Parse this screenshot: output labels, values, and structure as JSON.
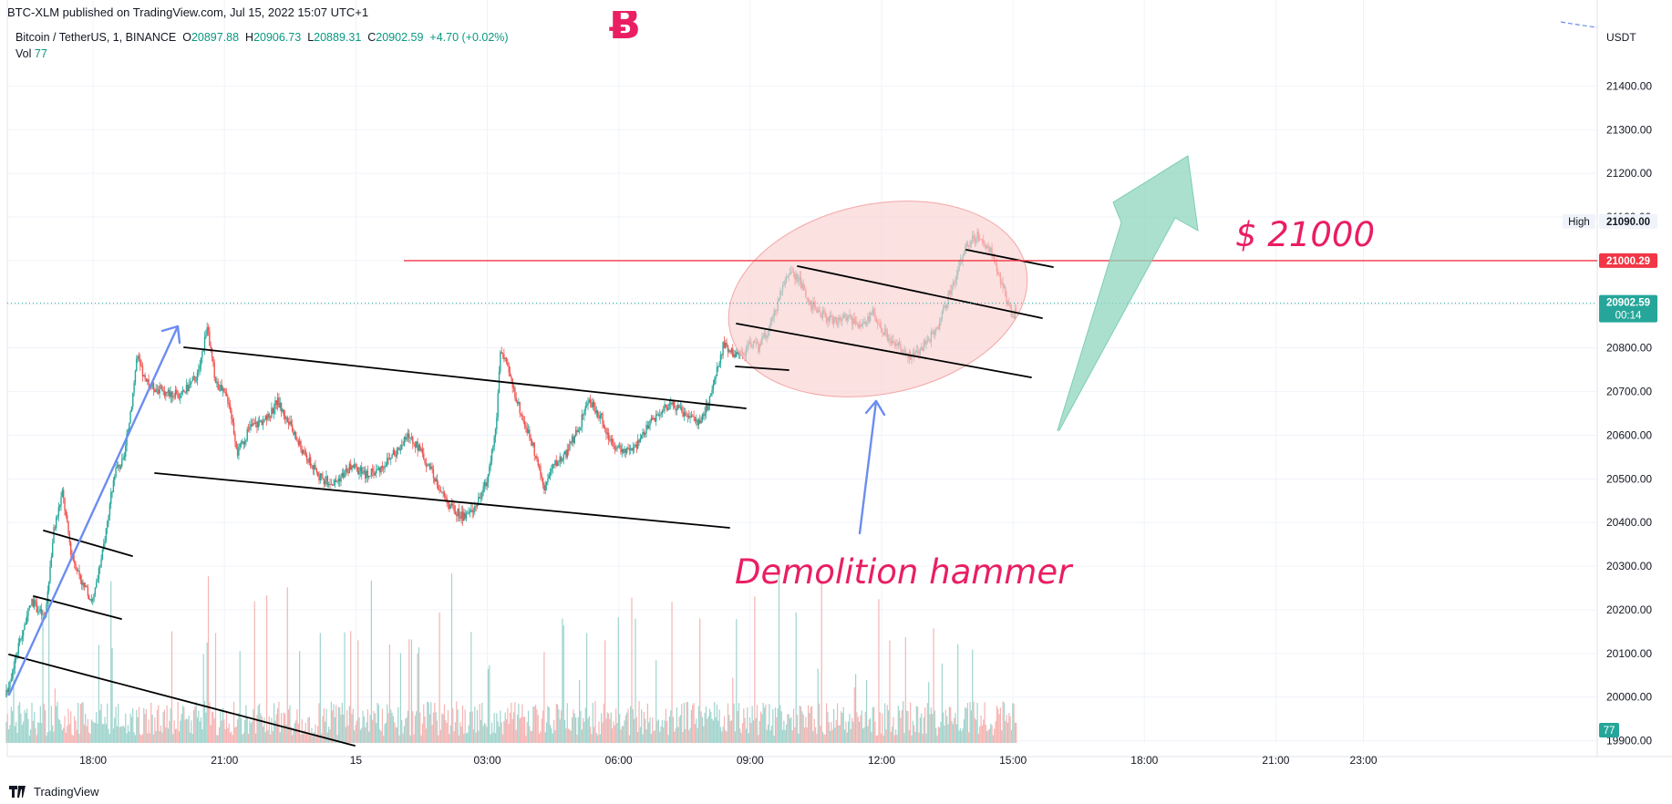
{
  "header": {
    "publisher": "BTC-XLM published on TradingView.com, Jul 15, 2022 15:07 UTC+1",
    "symbol": "Bitcoin / TetherUS, 1, BINANCE",
    "ohlc": {
      "o_label": "O",
      "o": "20897.88",
      "h_label": "H",
      "h": "20906.73",
      "l_label": "L",
      "l": "20889.31",
      "c_label": "C",
      "c": "20902.59",
      "change": "+4.70 (+0.02%)"
    },
    "vol_label": "Vol",
    "vol_value": "77"
  },
  "footer": {
    "brand": "TradingView",
    "logo_icon": "tradingview-logo-icon"
  },
  "colors": {
    "up": "#26a69a",
    "down": "#ef5350",
    "accent_red": "#f23645",
    "annotation_pink": "#e91e63",
    "green_arrow": "#8fd6bf",
    "blue_arrow": "#6b8df0",
    "ellipse": "#fbd1d1",
    "price_tag": "#26a69a"
  },
  "chart_data": {
    "type": "candlestick",
    "currency": "USDT",
    "y_ticks": [
      21400,
      21300,
      21200,
      21100,
      21000,
      20900,
      20800,
      20700,
      20600,
      20500,
      20400,
      20300,
      20200,
      20100,
      20000,
      19900
    ],
    "y_tick_labels": [
      "21400.00",
      "21300.00",
      "21200.00",
      "21100.00",
      "21000.00",
      "20900.00",
      "20800.00",
      "20700.00",
      "20600.00",
      "20500.00",
      "20400.00",
      "20300.00",
      "20200.00",
      "20100.00",
      "20000.00",
      "19900.00"
    ],
    "ylim": [
      19895,
      21460
    ],
    "x_ticks": [
      {
        "h": 18,
        "label": "18:00"
      },
      {
        "h": 21,
        "label": "21:00"
      },
      {
        "h": 24,
        "label": "15"
      },
      {
        "h": 27,
        "label": "03:00"
      },
      {
        "h": 30,
        "label": "06:00"
      },
      {
        "h": 33,
        "label": "09:00"
      },
      {
        "h": 36,
        "label": "12:00"
      },
      {
        "h": 39,
        "label": "15:00"
      },
      {
        "h": 42,
        "label": "18:00"
      },
      {
        "h": 45,
        "label": "21:00"
      },
      {
        "h": 47,
        "label": "23:00"
      }
    ],
    "xlim_hours": [
      16.0,
      52.0
    ],
    "last_hour": 39.1,
    "last_price": 20902.59,
    "price_path": [
      [
        16.0,
        20000
      ],
      [
        16.3,
        20120
      ],
      [
        16.6,
        20220
      ],
      [
        16.9,
        20180
      ],
      [
        17.1,
        20380
      ],
      [
        17.3,
        20470
      ],
      [
        17.5,
        20330
      ],
      [
        17.8,
        20250
      ],
      [
        18.0,
        20220
      ],
      [
        18.2,
        20320
      ],
      [
        18.5,
        20520
      ],
      [
        18.7,
        20540
      ],
      [
        18.9,
        20690
      ],
      [
        19.0,
        20780
      ],
      [
        19.2,
        20720
      ],
      [
        19.6,
        20700
      ],
      [
        20.0,
        20690
      ],
      [
        20.4,
        20740
      ],
      [
        20.6,
        20850
      ],
      [
        20.8,
        20720
      ],
      [
        21.1,
        20680
      ],
      [
        21.3,
        20560
      ],
      [
        21.6,
        20620
      ],
      [
        22.0,
        20640
      ],
      [
        22.2,
        20680
      ],
      [
        22.5,
        20620
      ],
      [
        22.8,
        20560
      ],
      [
        23.2,
        20500
      ],
      [
        23.5,
        20490
      ],
      [
        23.9,
        20530
      ],
      [
        24.2,
        20510
      ],
      [
        24.5,
        20520
      ],
      [
        24.9,
        20560
      ],
      [
        25.2,
        20600
      ],
      [
        25.5,
        20560
      ],
      [
        25.9,
        20480
      ],
      [
        26.2,
        20430
      ],
      [
        26.5,
        20410
      ],
      [
        26.8,
        20450
      ],
      [
        27.0,
        20500
      ],
      [
        27.2,
        20620
      ],
      [
        27.3,
        20800
      ],
      [
        27.5,
        20740
      ],
      [
        27.8,
        20640
      ],
      [
        28.0,
        20590
      ],
      [
        28.3,
        20480
      ],
      [
        28.5,
        20530
      ],
      [
        28.8,
        20560
      ],
      [
        29.1,
        20620
      ],
      [
        29.3,
        20680
      ],
      [
        29.6,
        20640
      ],
      [
        29.8,
        20590
      ],
      [
        30.0,
        20570
      ],
      [
        30.3,
        20560
      ],
      [
        30.6,
        20610
      ],
      [
        30.9,
        20650
      ],
      [
        31.2,
        20670
      ],
      [
        31.5,
        20650
      ],
      [
        31.8,
        20630
      ],
      [
        32.0,
        20660
      ],
      [
        32.2,
        20730
      ],
      [
        32.4,
        20810
      ],
      [
        32.6,
        20790
      ],
      [
        32.8,
        20780
      ],
      [
        33.0,
        20810
      ],
      [
        33.2,
        20800
      ],
      [
        33.5,
        20860
      ],
      [
        33.7,
        20930
      ],
      [
        33.9,
        20980
      ],
      [
        34.1,
        20960
      ],
      [
        34.3,
        20910
      ],
      [
        34.6,
        20880
      ],
      [
        34.9,
        20860
      ],
      [
        35.2,
        20870
      ],
      [
        35.5,
        20850
      ],
      [
        35.8,
        20880
      ],
      [
        36.1,
        20830
      ],
      [
        36.4,
        20800
      ],
      [
        36.7,
        20780
      ],
      [
        37.0,
        20810
      ],
      [
        37.3,
        20850
      ],
      [
        37.6,
        20940
      ],
      [
        37.9,
        21030
      ],
      [
        38.2,
        21060
      ],
      [
        38.5,
        21020
      ],
      [
        38.8,
        20930
      ],
      [
        39.0,
        20870
      ],
      [
        39.1,
        20902
      ]
    ],
    "series": [
      {
        "name": "Vol",
        "last_value": "77"
      }
    ],
    "annotations": {
      "level_label": "$ 21000",
      "level_price": 21000,
      "level_tag": "21000.29",
      "pattern_label": "Demolition hammer",
      "high_label": "High",
      "high_tag": "21090.00",
      "last_price_tag": "20902.59",
      "countdown": "00:14",
      "vol_tag": "77"
    }
  }
}
